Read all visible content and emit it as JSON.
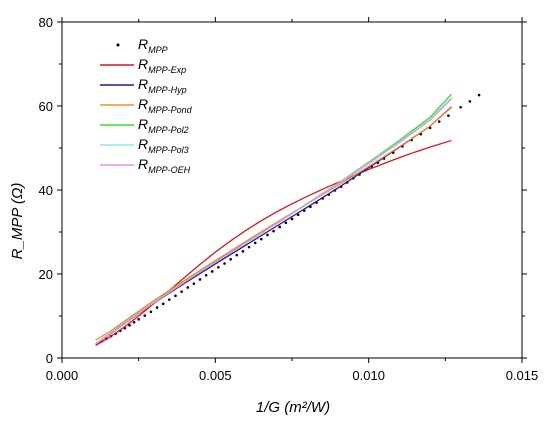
{
  "chart_data": {
    "type": "line",
    "xlabel": "1/G (m²/W)",
    "ylabel": "R_MPP (Ω)",
    "xlim": [
      0.0,
      0.015
    ],
    "ylim": [
      0,
      80
    ],
    "xticks": [
      "0.000",
      "0.005",
      "0.010",
      "0.015"
    ],
    "yticks": [
      "0",
      "20",
      "40",
      "60",
      "80"
    ],
    "grid": false,
    "legend_position": "top-left",
    "series": [
      {
        "name": "R_MPP",
        "label_main": "R",
        "label_sub": "MPP",
        "style": "scatter",
        "color": "#000000",
        "x": [
          0.00115,
          0.0013,
          0.00145,
          0.0016,
          0.00175,
          0.0019,
          0.00205,
          0.0022,
          0.00235,
          0.0025,
          0.0027,
          0.0029,
          0.0031,
          0.0033,
          0.0035,
          0.0037,
          0.0039,
          0.0041,
          0.0043,
          0.0045,
          0.0047,
          0.0049,
          0.0051,
          0.0053,
          0.0055,
          0.0057,
          0.0059,
          0.0061,
          0.0063,
          0.0065,
          0.0067,
          0.0069,
          0.0071,
          0.0073,
          0.0075,
          0.0077,
          0.0079,
          0.0081,
          0.0083,
          0.0085,
          0.0087,
          0.0089,
          0.0091,
          0.0093,
          0.0095,
          0.0097,
          0.0099,
          0.0101,
          0.0103,
          0.0105,
          0.0108,
          0.0111,
          0.0114,
          0.0117,
          0.012,
          0.0123,
          0.0126,
          0.013,
          0.0133,
          0.0136
        ],
        "y": [
          3.5,
          4.0,
          4.6,
          5.2,
          5.8,
          6.5,
          7.1,
          7.8,
          8.5,
          9.2,
          10.1,
          11.0,
          12.0,
          12.9,
          13.9,
          14.8,
          15.8,
          16.8,
          17.7,
          18.7,
          19.7,
          20.6,
          21.6,
          22.5,
          23.5,
          24.5,
          25.4,
          26.4,
          27.4,
          28.3,
          29.3,
          30.2,
          31.2,
          32.2,
          33.1,
          34.1,
          35.1,
          36.0,
          37.0,
          38.0,
          38.9,
          39.9,
          40.8,
          41.8,
          42.8,
          43.7,
          44.7,
          45.6,
          46.5,
          47.5,
          48.9,
          50.4,
          51.9,
          53.3,
          54.8,
          56.3,
          57.7,
          59.7,
          61.1,
          62.6
        ]
      },
      {
        "name": "R_MPP-Exp",
        "label_main": "R",
        "label_sub": "MPP-Exp",
        "style": "line",
        "color": "#e0131b",
        "x": [
          0.0011,
          0.0015,
          0.002,
          0.0025,
          0.003,
          0.0035,
          0.004,
          0.0045,
          0.005,
          0.0055,
          0.006,
          0.0065,
          0.007,
          0.0075,
          0.008,
          0.0085,
          0.009,
          0.0095,
          0.01,
          0.0105,
          0.011,
          0.0115,
          0.012,
          0.0127
        ],
        "y": [
          3.0,
          4.7,
          7.2,
          10.0,
          13.0,
          16.1,
          19.2,
          22.3,
          25.2,
          27.9,
          30.4,
          32.7,
          34.8,
          36.7,
          38.5,
          40.2,
          41.8,
          43.4,
          44.9,
          46.3,
          47.7,
          49.0,
          50.2,
          51.8
        ]
      },
      {
        "name": "R_MPP-Hyp",
        "label_main": "R",
        "label_sub": "MPP-Hyp",
        "style": "line",
        "color": "#1a1aa6",
        "x": [
          0.0011,
          0.0015,
          0.002,
          0.003,
          0.004,
          0.005,
          0.006,
          0.007,
          0.008,
          0.009,
          0.01,
          0.011,
          0.012,
          0.0127
        ],
        "y": [
          3.2,
          5.3,
          8.0,
          13.1,
          17.8,
          22.4,
          26.9,
          31.4,
          35.9,
          40.5,
          45.3,
          50.2,
          55.2,
          59.8
        ]
      },
      {
        "name": "R_MPP-Pond",
        "label_main": "R",
        "label_sub": "MPP-Pond",
        "style": "line",
        "color": "#f0902a",
        "x": [
          0.0011,
          0.0015,
          0.002,
          0.003,
          0.004,
          0.005,
          0.006,
          0.007,
          0.008,
          0.009,
          0.01,
          0.011,
          0.012,
          0.0127
        ],
        "y": [
          4.3,
          6.0,
          8.6,
          13.7,
          18.5,
          23.2,
          27.8,
          32.3,
          36.7,
          41.1,
          45.6,
          50.3,
          55.2,
          59.9
        ]
      },
      {
        "name": "R_MPP-Pol2",
        "label_main": "R",
        "label_sub": "MPP-Pol2",
        "style": "line",
        "color": "#2ce02c",
        "x": [
          0.0011,
          0.0015,
          0.002,
          0.003,
          0.004,
          0.005,
          0.006,
          0.007,
          0.008,
          0.009,
          0.01,
          0.011,
          0.012,
          0.0127
        ],
        "y": [
          3.4,
          5.5,
          8.2,
          13.3,
          18.2,
          22.9,
          27.5,
          32.1,
          36.8,
          41.6,
          46.6,
          51.8,
          57.3,
          62.8
        ]
      },
      {
        "name": "R_MPP-Pol3",
        "label_main": "R",
        "label_sub": "MPP-Pol3",
        "style": "line",
        "color": "#8fe3e3",
        "x": [
          0.0011,
          0.0015,
          0.002,
          0.003,
          0.004,
          0.005,
          0.006,
          0.007,
          0.008,
          0.009,
          0.01,
          0.011,
          0.012,
          0.0127
        ],
        "y": [
          3.3,
          5.4,
          8.1,
          13.2,
          18.1,
          22.8,
          27.4,
          32.0,
          36.7,
          41.5,
          46.4,
          51.5,
          56.8,
          62.0
        ]
      },
      {
        "name": "R_MPP-OEH",
        "label_main": "R",
        "label_sub": "MPP-OEH",
        "style": "line",
        "color": "#ee8ee8",
        "x": [
          0.0011,
          0.0015,
          0.002,
          0.003,
          0.004,
          0.005,
          0.006,
          0.007,
          0.008,
          0.009,
          0.01,
          0.011,
          0.012,
          0.0127
        ],
        "y": [
          3.3,
          5.4,
          8.1,
          13.2,
          18.1,
          22.8,
          27.4,
          32.0,
          36.7,
          41.4,
          46.3,
          51.3,
          56.6,
          61.7
        ]
      }
    ]
  }
}
